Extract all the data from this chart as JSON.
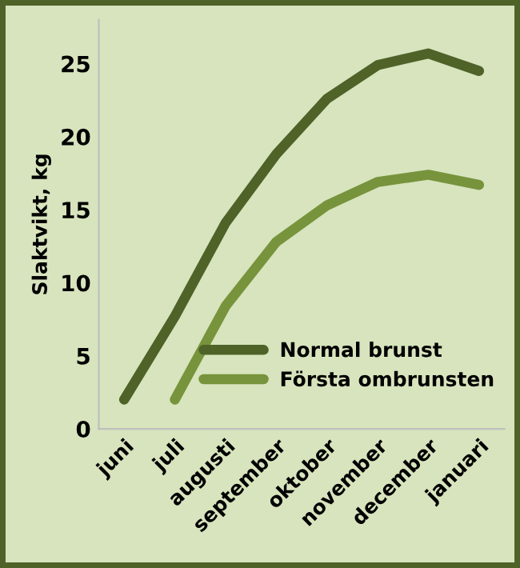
{
  "chart_data": {
    "type": "line",
    "ylabel": "Slaktvikt, kg",
    "categories": [
      "juni",
      "juli",
      "augusti",
      "september",
      "oktober",
      "november",
      "december",
      "januari"
    ],
    "series": [
      {
        "name": "Normal brunst",
        "color": "#4f6228",
        "values": [
          2,
          7.7,
          14.1,
          18.8,
          22.6,
          24.9,
          25.7,
          24.5
        ]
      },
      {
        "name": "Första ombrunsten",
        "color": "#77933c",
        "values": [
          null,
          2,
          8.4,
          12.8,
          15.3,
          16.9,
          17.4,
          16.7
        ]
      }
    ],
    "ylim": [
      0,
      28
    ],
    "yticks": [
      0,
      5,
      10,
      15,
      20,
      25
    ],
    "grid": false,
    "legend": "bottom right",
    "marker": "none",
    "line_style": "solid"
  }
}
